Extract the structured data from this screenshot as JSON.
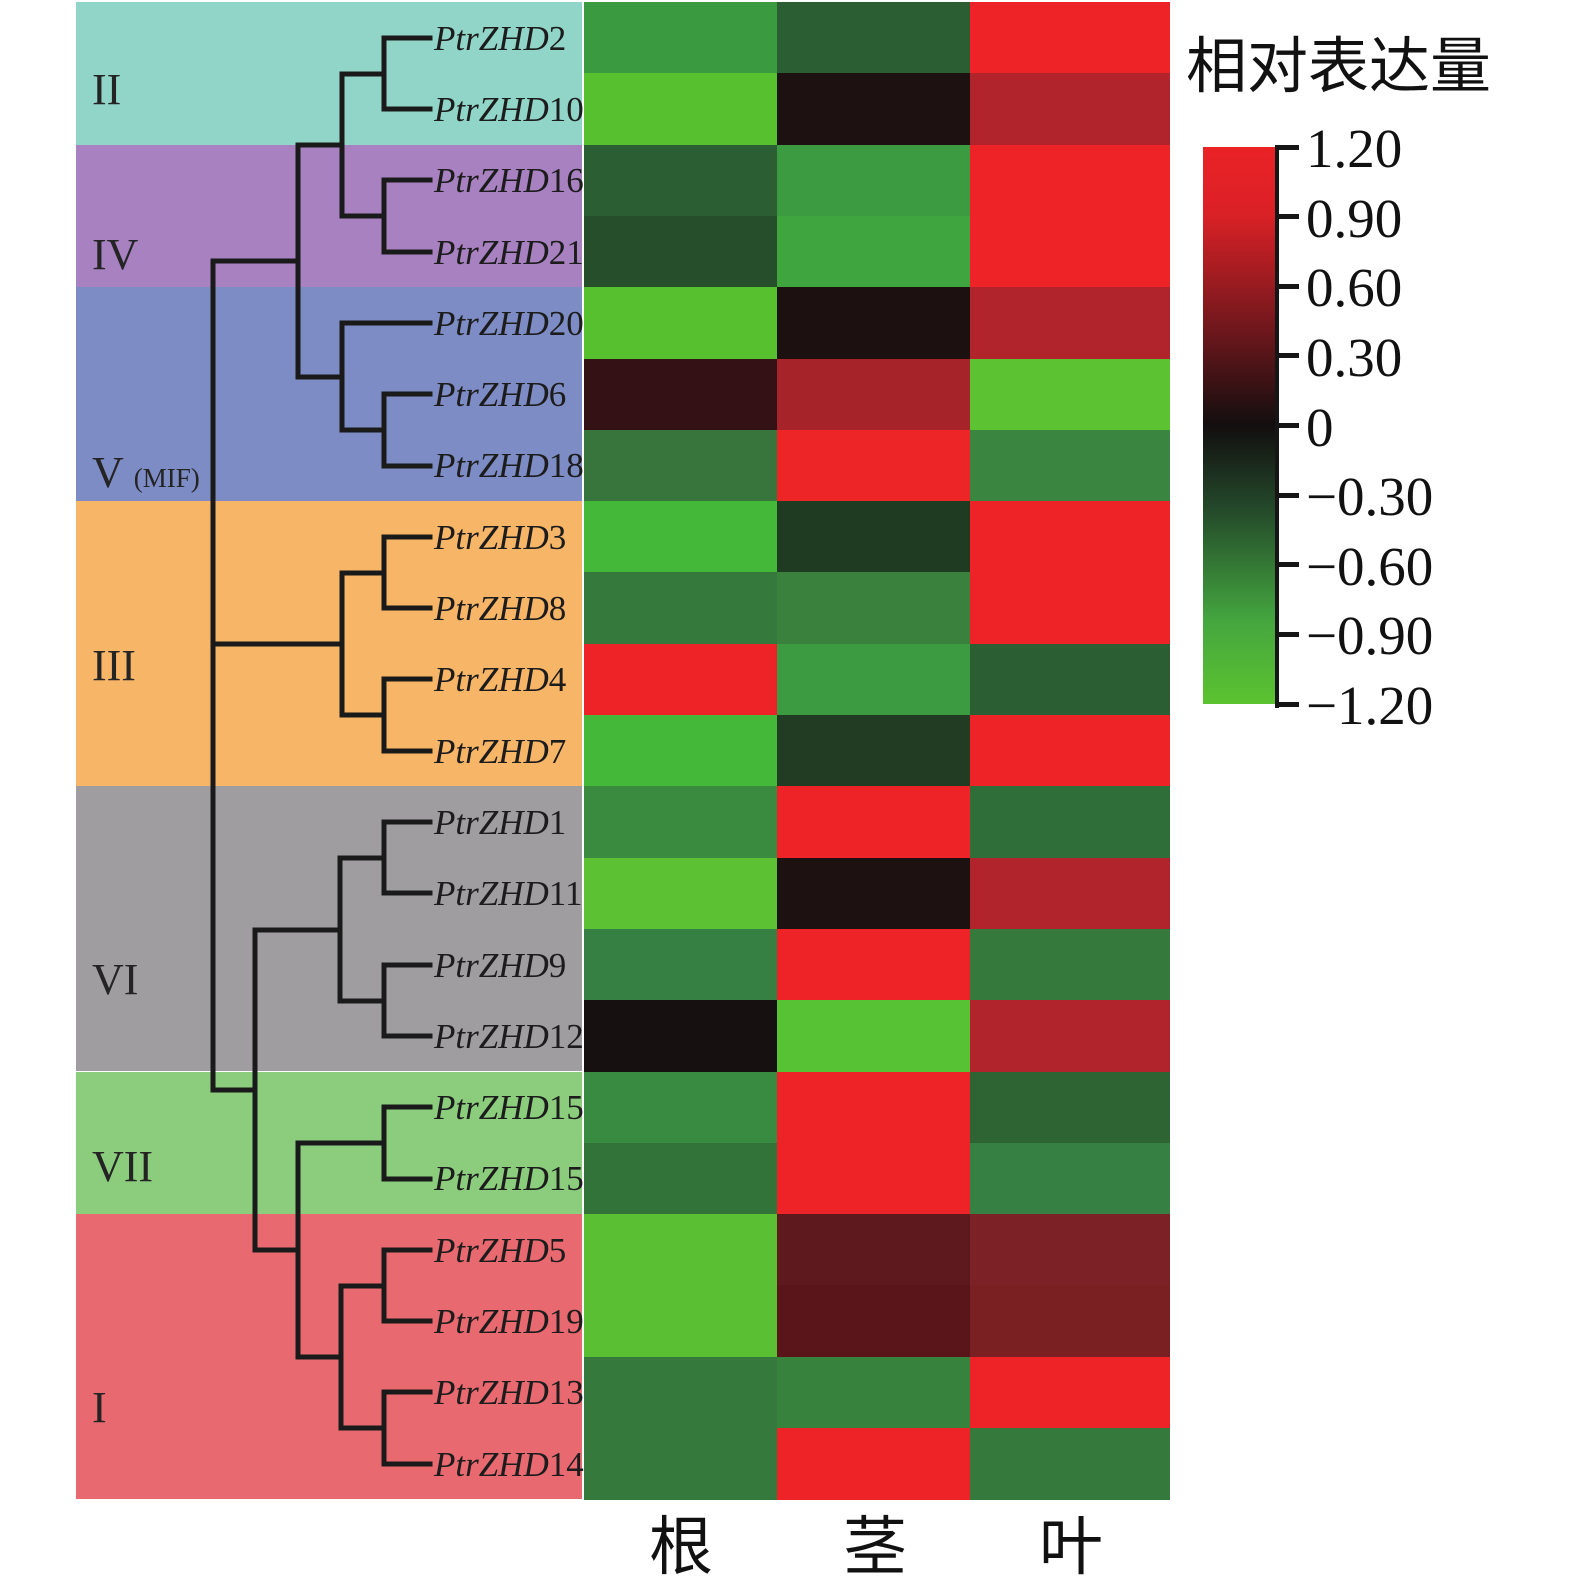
{
  "figure": {
    "description_visible_text_only": "Phylogenetic-tree heatmap of PtrZHD gene relative expression in three tissues"
  },
  "legend": {
    "title": "相对表达量",
    "tick_labels": [
      "1.20",
      "0.90",
      "0.60",
      "0.30",
      "0",
      "−0.30",
      "−0.60",
      "−0.90",
      "−1.20"
    ],
    "max_color": "#ea2226",
    "zero_color": "#120e0f",
    "min_color": "#5bc32f",
    "gradient_stops": [
      [
        0,
        "#ea2226"
      ],
      [
        0.12,
        "#da2126"
      ],
      [
        0.33,
        "#6e171c"
      ],
      [
        0.5,
        "#120e0f"
      ],
      [
        0.65,
        "#24492a"
      ],
      [
        0.85,
        "#44a63f"
      ],
      [
        1,
        "#5bc32f"
      ]
    ]
  },
  "columns": [
    {
      "id": "root",
      "label": "根"
    },
    {
      "id": "stem",
      "label": "茎"
    },
    {
      "id": "leaf",
      "label": "叶"
    }
  ],
  "groups": [
    {
      "label": "II",
      "color": "#90d5c8",
      "row_start": 0,
      "row_end": 2
    },
    {
      "label": "IV",
      "color": "#a881c1",
      "row_start": 2,
      "row_end": 4
    },
    {
      "label": "V",
      "sublabel": "(MIF)",
      "color": "#7d8cc4",
      "row_start": 4,
      "row_end": 7
    },
    {
      "label": "III",
      "color": "#f7b568",
      "row_start": 7,
      "row_end": 11
    },
    {
      "label": "VI",
      "color": "#a09da1",
      "row_start": 11,
      "row_end": 15
    },
    {
      "label": "VII",
      "color": "#8bcd7d",
      "row_start": 15,
      "row_end": 17
    },
    {
      "label": "I",
      "color": "#e8696f",
      "row_start": 17,
      "row_end": 21
    }
  ],
  "genes": [
    {
      "prefix": "PtrZHD",
      "num": "2",
      "group": "II",
      "colors": {
        "root": "#3a9a40",
        "stem": "#2b5e33",
        "leaf": "#ed2327"
      }
    },
    {
      "prefix": "PtrZHD",
      "num": "10",
      "group": "II",
      "colors": {
        "root": "#57c02f",
        "stem": "#1e1112",
        "leaf": "#b2242b"
      }
    },
    {
      "prefix": "PtrZHD",
      "num": "16",
      "group": "IV",
      "colors": {
        "root": "#2b5e32",
        "stem": "#3c9a40",
        "leaf": "#ed2327"
      }
    },
    {
      "prefix": "PtrZHD",
      "num": "21",
      "group": "IV",
      "colors": {
        "root": "#264e2b",
        "stem": "#3fa63f",
        "leaf": "#ed2327"
      }
    },
    {
      "prefix": "PtrZHD",
      "num": "20",
      "group": "V",
      "colors": {
        "root": "#57c02f",
        "stem": "#1c1011",
        "leaf": "#b2242b"
      }
    },
    {
      "prefix": "PtrZHD",
      "num": "6",
      "group": "V",
      "colors": {
        "root": "#331114",
        "stem": "#a62429",
        "leaf": "#5cc231"
      }
    },
    {
      "prefix": "PtrZHD",
      "num": "18",
      "group": "V",
      "colors": {
        "root": "#37753c",
        "stem": "#ee2527",
        "leaf": "#3a8540"
      }
    },
    {
      "prefix": "PtrZHD",
      "num": "3",
      "group": "III",
      "colors": {
        "root": "#44b838",
        "stem": "#1f3c22",
        "leaf": "#ed2327"
      }
    },
    {
      "prefix": "PtrZHD",
      "num": "8",
      "group": "III",
      "colors": {
        "root": "#36793d",
        "stem": "#3a813e",
        "leaf": "#ed2327"
      }
    },
    {
      "prefix": "PtrZHD",
      "num": "4",
      "group": "III",
      "colors": {
        "root": "#ed2327",
        "stem": "#3c9a41",
        "leaf": "#2b5e33"
      }
    },
    {
      "prefix": "PtrZHD",
      "num": "7",
      "group": "III",
      "colors": {
        "root": "#44b838",
        "stem": "#213c22",
        "leaf": "#ed2327"
      }
    },
    {
      "prefix": "PtrZHD",
      "num": "1",
      "group": "VI",
      "colors": {
        "root": "#3a8b40",
        "stem": "#ed2327",
        "leaf": "#2f6e38"
      }
    },
    {
      "prefix": "PtrZHD",
      "num": "11",
      "group": "VI",
      "colors": {
        "root": "#5cc234",
        "stem": "#1e1112",
        "leaf": "#b2242b"
      }
    },
    {
      "prefix": "PtrZHD",
      "num": "9",
      "group": "VI",
      "colors": {
        "root": "#378043",
        "stem": "#ed2327",
        "leaf": "#35793c"
      }
    },
    {
      "prefix": "PtrZHD",
      "num": "12",
      "group": "VI",
      "colors": {
        "root": "#171011",
        "stem": "#57c233",
        "leaf": "#b2242b"
      }
    },
    {
      "prefix": "PtrZHD",
      "num": "15",
      "group": "VII",
      "colors": {
        "root": "#398b41",
        "stem": "#ed2327",
        "leaf": "#2e6334"
      }
    },
    {
      "prefix": "PtrZHD",
      "num": "15",
      "group": "VII",
      "colors": {
        "root": "#327339",
        "stem": "#ed2327",
        "leaf": "#378043"
      }
    },
    {
      "prefix": "PtrZHD",
      "num": "5",
      "group": "I",
      "colors": {
        "root": "#5abf33",
        "stem": "#5d191d",
        "leaf": "#7c2125"
      }
    },
    {
      "prefix": "PtrZHD",
      "num": "19",
      "group": "I",
      "colors": {
        "root": "#5abf33",
        "stem": "#591519",
        "leaf": "#7a2023"
      }
    },
    {
      "prefix": "PtrZHD",
      "num": "13",
      "group": "I",
      "colors": {
        "root": "#35793c",
        "stem": "#37823d",
        "leaf": "#ed2327"
      }
    },
    {
      "prefix": "PtrZHD",
      "num": "14",
      "group": "I",
      "colors": {
        "root": "#35793c",
        "stem": "#ed2327",
        "leaf": "#36793d"
      }
    }
  ],
  "chart_data": {
    "type": "heatmap",
    "title": "相对表达量",
    "columns": [
      "根",
      "茎",
      "叶"
    ],
    "value_range": [
      -1.2,
      1.2
    ],
    "legend_ticks": [
      1.2,
      0.9,
      0.6,
      0.3,
      0,
      -0.3,
      -0.6,
      -0.9,
      -1.2
    ],
    "color_scale": {
      "high": "#ea2226",
      "mid": "#120e0f",
      "low": "#5bc32f"
    },
    "rows": [
      {
        "gene": "PtrZHD2",
        "clade": "II",
        "values": [
          -0.8,
          -0.45,
          1.2
        ]
      },
      {
        "gene": "PtrZHD10",
        "clade": "II",
        "values": [
          -1.1,
          0.05,
          0.75
        ]
      },
      {
        "gene": "PtrZHD16",
        "clade": "IV",
        "values": [
          -0.45,
          -0.8,
          1.2
        ]
      },
      {
        "gene": "PtrZHD21",
        "clade": "IV",
        "values": [
          -0.35,
          -0.85,
          1.2
        ]
      },
      {
        "gene": "PtrZHD20",
        "clade": "V (MIF)",
        "values": [
          -1.1,
          0.05,
          0.75
        ]
      },
      {
        "gene": "PtrZHD6",
        "clade": "V (MIF)",
        "values": [
          0.15,
          0.7,
          -1.15
        ]
      },
      {
        "gene": "PtrZHD18",
        "clade": "V (MIF)",
        "values": [
          -0.6,
          1.2,
          -0.65
        ]
      },
      {
        "gene": "PtrZHD3",
        "clade": "III",
        "values": [
          -0.95,
          -0.3,
          1.2
        ]
      },
      {
        "gene": "PtrZHD8",
        "clade": "III",
        "values": [
          -0.6,
          -0.65,
          1.2
        ]
      },
      {
        "gene": "PtrZHD4",
        "clade": "III",
        "values": [
          1.2,
          -0.8,
          -0.45
        ]
      },
      {
        "gene": "PtrZHD7",
        "clade": "III",
        "values": [
          -0.95,
          -0.3,
          1.2
        ]
      },
      {
        "gene": "PtrZHD1",
        "clade": "VI",
        "values": [
          -0.7,
          1.2,
          -0.55
        ]
      },
      {
        "gene": "PtrZHD11",
        "clade": "VI",
        "values": [
          -1.15,
          0.05,
          0.75
        ]
      },
      {
        "gene": "PtrZHD9",
        "clade": "VI",
        "values": [
          -0.65,
          1.2,
          -0.6
        ]
      },
      {
        "gene": "PtrZHD12",
        "clade": "VI",
        "values": [
          0.0,
          -1.15,
          0.75
        ]
      },
      {
        "gene": "PtrZHD15",
        "clade": "VII",
        "values": [
          -0.7,
          1.2,
          -0.5
        ]
      },
      {
        "gene": "PtrZHD15",
        "clade": "VII",
        "values": [
          -0.55,
          1.2,
          -0.65
        ]
      },
      {
        "gene": "PtrZHD5",
        "clade": "I",
        "values": [
          -1.1,
          0.35,
          0.45
        ]
      },
      {
        "gene": "PtrZHD19",
        "clade": "I",
        "values": [
          -1.1,
          0.35,
          0.45
        ]
      },
      {
        "gene": "PtrZHD13",
        "clade": "I",
        "values": [
          -0.6,
          -0.65,
          1.2
        ]
      },
      {
        "gene": "PtrZHD14",
        "clade": "I",
        "values": [
          -0.6,
          1.2,
          -0.6
        ]
      }
    ]
  }
}
